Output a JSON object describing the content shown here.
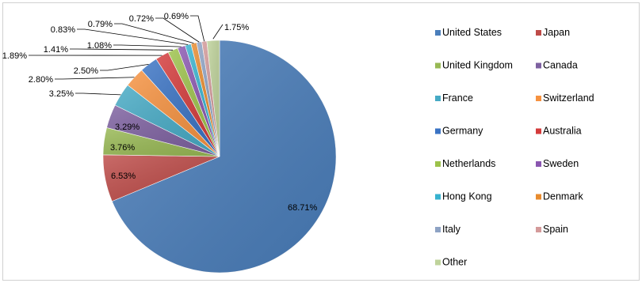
{
  "chart_data": {
    "type": "pie",
    "title": "",
    "legend_position": "right",
    "slices": [
      {
        "label": "United States",
        "value": 68.71,
        "display": "68.71%",
        "color": "#4a7ebb"
      },
      {
        "label": "Japan",
        "value": 6.53,
        "display": "6.53%",
        "color": "#be4b48"
      },
      {
        "label": "United Kingdom",
        "value": 3.76,
        "display": "3.76%",
        "color": "#98b954"
      },
      {
        "label": "Canada",
        "value": 3.29,
        "display": "3.29%",
        "color": "#7d60a0"
      },
      {
        "label": "France",
        "value": 3.25,
        "display": "3.25%",
        "color": "#46aac5"
      },
      {
        "label": "Switzerland",
        "value": 2.8,
        "display": "2.80%",
        "color": "#f69240"
      },
      {
        "label": "Germany",
        "value": 2.5,
        "display": "2.50%",
        "color": "#3a73c4"
      },
      {
        "label": "Australia",
        "value": 1.89,
        "display": "1.89%",
        "color": "#d43b3b"
      },
      {
        "label": "Netherlands",
        "value": 1.41,
        "display": "1.41%",
        "color": "#9cc24a"
      },
      {
        "label": "Sweden",
        "value": 1.08,
        "display": "1.08%",
        "color": "#8a56b0"
      },
      {
        "label": "Hong Kong",
        "value": 0.83,
        "display": "0.83%",
        "color": "#37b2cf"
      },
      {
        "label": "Denmark",
        "value": 0.79,
        "display": "0.79%",
        "color": "#e88b2e"
      },
      {
        "label": "Italy",
        "value": 0.72,
        "display": "0.72%",
        "color": "#8ea3c4"
      },
      {
        "label": "Spain",
        "value": 0.69,
        "display": "0.69%",
        "color": "#d49a9a"
      },
      {
        "label": "Other",
        "value": 1.75,
        "display": "1.75%",
        "color": "#bfd39b"
      }
    ]
  }
}
